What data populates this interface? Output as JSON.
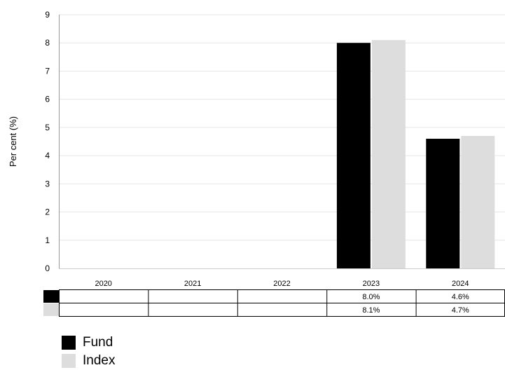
{
  "chart_data": {
    "type": "bar",
    "ylabel": "Per cent (%)",
    "ylim": [
      0,
      9
    ],
    "yticks": [
      0,
      1,
      2,
      3,
      4,
      5,
      6,
      7,
      8,
      9
    ],
    "grid": true,
    "categories": [
      "2020",
      "2021",
      "2022",
      "2023",
      "2024"
    ],
    "series": [
      {
        "name": "Fund",
        "color": "#000000",
        "values": [
          null,
          null,
          null,
          8.0,
          4.6
        ],
        "labels": [
          "",
          "",
          "",
          "8.0%",
          "4.6%"
        ]
      },
      {
        "name": "Index",
        "color": "#dddddd",
        "values": [
          null,
          null,
          null,
          8.1,
          4.7
        ],
        "labels": [
          "",
          "",
          "",
          "8.1%",
          "4.7%"
        ]
      }
    ],
    "legend": "bottom-left"
  }
}
